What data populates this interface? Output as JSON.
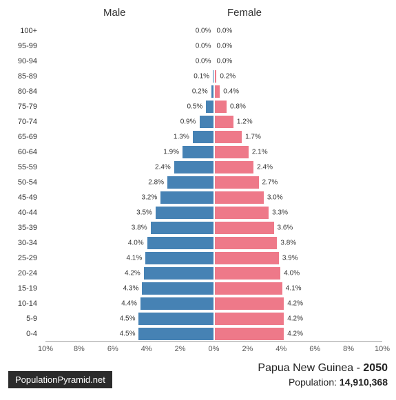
{
  "chart": {
    "type": "population-pyramid",
    "male_label": "Male",
    "female_label": "Female",
    "male_color": "#4682b4",
    "female_color": "#ee7989",
    "background_color": "#ffffff",
    "axis_color": "#999999",
    "text_color": "#333333",
    "label_fontsize": 11,
    "header_fontsize": 15,
    "value_fontsize": 10,
    "x_max_percent": 10,
    "x_ticks": [
      "10%",
      "8%",
      "6%",
      "4%",
      "2%",
      "0%",
      "2%",
      "4%",
      "6%",
      "8%",
      "10%"
    ],
    "age_groups": [
      "100+",
      "95-99",
      "90-94",
      "85-89",
      "80-84",
      "75-79",
      "70-74",
      "65-69",
      "60-64",
      "55-59",
      "50-54",
      "45-49",
      "40-44",
      "35-39",
      "30-34",
      "25-29",
      "20-24",
      "15-19",
      "10-14",
      "5-9",
      "0-4"
    ],
    "male_values": [
      0.0,
      0.0,
      0.0,
      0.1,
      0.2,
      0.5,
      0.9,
      1.3,
      1.9,
      2.4,
      2.8,
      3.2,
      3.5,
      3.8,
      4.0,
      4.1,
      4.2,
      4.3,
      4.4,
      4.5,
      4.5
    ],
    "female_values": [
      0.0,
      0.0,
      0.0,
      0.2,
      0.4,
      0.8,
      1.2,
      1.7,
      2.1,
      2.4,
      2.7,
      3.0,
      3.3,
      3.6,
      3.8,
      3.9,
      4.0,
      4.1,
      4.2,
      4.2,
      4.2
    ]
  },
  "footer": {
    "source_badge": "PopulationPyramid.net",
    "country": "Papua New Guinea",
    "year": "2050",
    "population_label": "Population:",
    "population_value": "14,910,368"
  }
}
